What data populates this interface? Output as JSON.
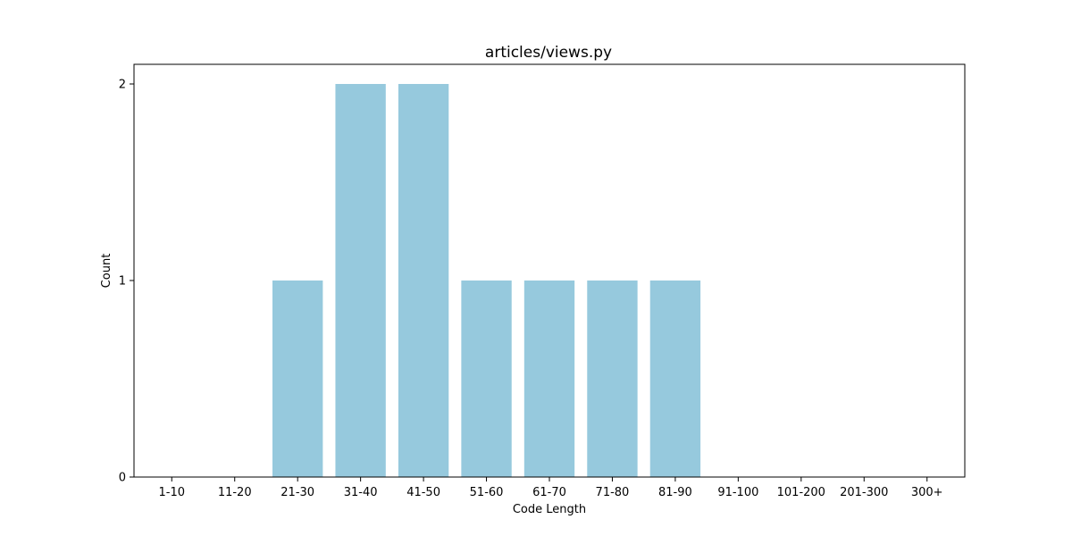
{
  "chart_data": {
    "type": "bar",
    "title": "articles/views.py",
    "xlabel": "Code Length",
    "ylabel": "Count",
    "categories": [
      "1-10",
      "11-20",
      "21-30",
      "31-40",
      "41-50",
      "51-60",
      "61-70",
      "71-80",
      "81-90",
      "91-100",
      "101-200",
      "201-300",
      "300+"
    ],
    "values": [
      0,
      0,
      1,
      2,
      2,
      1,
      1,
      1,
      1,
      0,
      0,
      0,
      0
    ],
    "ylim": [
      0,
      2.1
    ],
    "yticks": [
      0,
      1,
      2
    ],
    "grid": false,
    "bar_color": "#96c9dd"
  }
}
